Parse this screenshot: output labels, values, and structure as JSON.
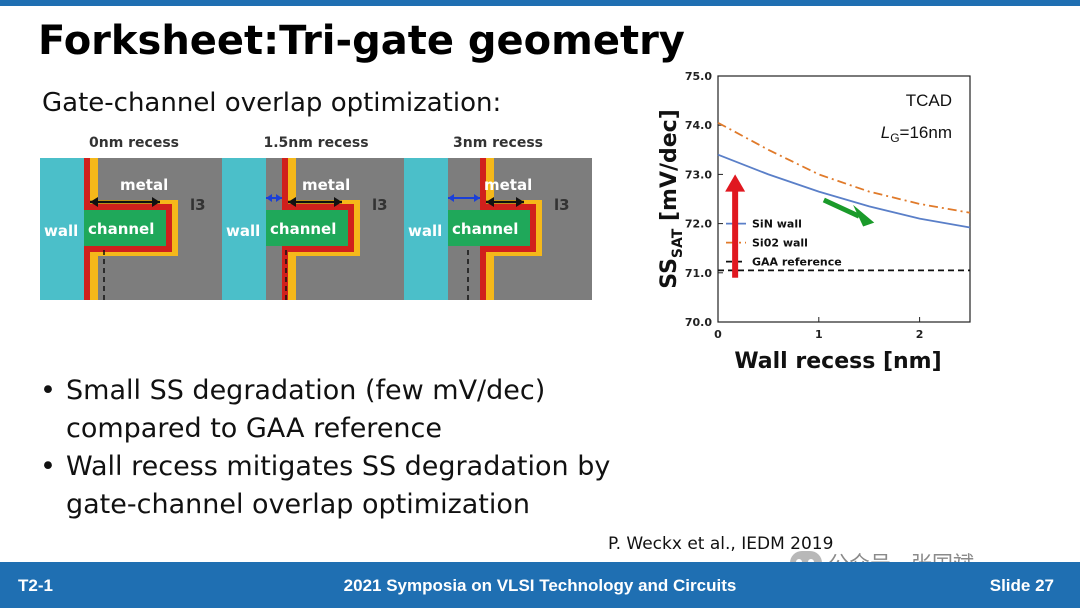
{
  "slide": {
    "title": "Forksheet:Tri-gate geometry",
    "subtitle": "Gate-channel overlap optimization:",
    "diagrams": [
      {
        "caption": "0nm recess",
        "metal": "metal",
        "wall": "wall",
        "channel": "channel",
        "mark": "l3"
      },
      {
        "caption": "1.5nm recess",
        "metal": "metal",
        "wall": "wall",
        "channel": "channel",
        "mark": "l3"
      },
      {
        "caption": "3nm recess",
        "metal": "metal",
        "wall": "wall",
        "channel": "channel",
        "mark": "l3"
      }
    ],
    "bullets": [
      {
        "l1": "Small SS degradation (few mV/dec)",
        "l2": "compared to GAA reference"
      },
      {
        "l1": "Wall recess mitigates SS degradation by",
        "l2": "gate-channel overlap optimization"
      }
    ],
    "citation": "P. Weckx et al., IEDM 2019",
    "watermark": "公众号 · 张国斌"
  },
  "footer": {
    "left": "T2-1",
    "center": "2021 Symposia on VLSI Technology and Circuits",
    "right": "Slide 27"
  },
  "colors": {
    "footer_bg": "#1f6fb2",
    "wall": "#4bbfc9",
    "liner_red": "#d0201c",
    "liner_yellow": "#f5b81a",
    "metal": "#7d7d7d",
    "channel": "#1fa85a",
    "sin_line": "#5a7fc8",
    "sio2_line": "#e07a2a",
    "arrow_red": "#e01820",
    "arrow_green": "#1a9a2a"
  },
  "chart_data": {
    "type": "line",
    "title": "",
    "annotations": [
      "TCAD",
      "L",
      "G",
      "=16nm"
    ],
    "xlabel": "Wall recess [nm]",
    "ylabel": "SS",
    "ylabel_sub": "SAT",
    "ylabel_unit": " [mV/dec]",
    "xlim": [
      0,
      2.5
    ],
    "ylim": [
      70.0,
      75.0
    ],
    "xticks": [
      "0",
      "1",
      "2"
    ],
    "yticks": [
      "70.0",
      "71.0",
      "72.0",
      "73.0",
      "74.0",
      "75.0"
    ],
    "legend_position": "bottom-left",
    "series": [
      {
        "name": "SiN wall",
        "style": "solid",
        "x": [
          0,
          0.5,
          1.0,
          1.5,
          2.0,
          2.5
        ],
        "y": [
          73.4,
          73.0,
          72.65,
          72.35,
          72.1,
          71.92
        ]
      },
      {
        "name": "Si02 wall",
        "style": "dashdot",
        "x": [
          0,
          0.5,
          1.0,
          1.5,
          2.0,
          2.5
        ],
        "y": [
          74.05,
          73.5,
          73.0,
          72.65,
          72.4,
          72.22
        ]
      },
      {
        "name": "GAA reference",
        "style": "dashed",
        "x": [
          0,
          2.5
        ],
        "y": [
          71.05,
          71.05
        ]
      }
    ]
  }
}
